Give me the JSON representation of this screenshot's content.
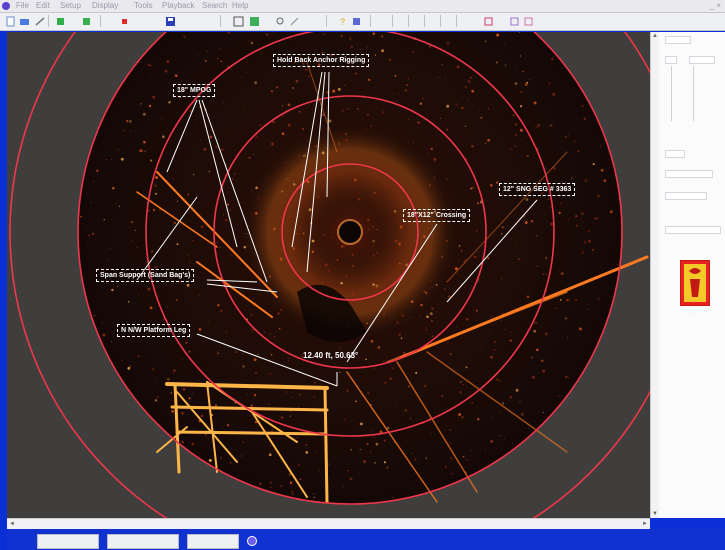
{
  "menubar": {
    "items": [
      "File",
      "Edit",
      "Setup",
      "Display",
      "Tools",
      "Playback",
      "Search",
      "Help"
    ],
    "window_controls": "_ ×"
  },
  "toolbar": {
    "buttons": [
      "new-icon",
      "open-icon",
      "save-icon",
      "play-icon",
      "record-icon",
      "stop-icon",
      "disk-icon",
      "grid-icon",
      "palette-icon",
      "zoom-icon",
      "brush-icon",
      "help-icon",
      "info-icon",
      "capture-icon",
      "settings-icon"
    ]
  },
  "sonar": {
    "callouts": {
      "hold_back": "Hold Back Anchor Rigging",
      "mpog": "18\" MPOG",
      "crossing": "18\"X12\" Crossing",
      "sng": "12\" SNG SEG # 3363",
      "span_support": "Span Support (Sand Bag's)",
      "platform_leg": "N N/W Platform Leg"
    },
    "cursor_readout": "12.40 ft, 50.63°",
    "colors": {
      "ring": "#f0364b",
      "background": "#3f3e3d",
      "sonar_floor": "#1c0e08",
      "return": "#ff8a2a"
    }
  },
  "status": {
    "indicator_color": "#6d5cf0"
  }
}
